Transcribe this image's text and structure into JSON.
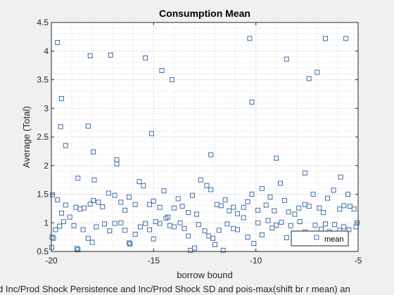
{
  "chart_data": {
    "type": "scatter",
    "title": "Consumption Mean",
    "xlabel": "borrow bound",
    "ylabel": "Average (Total)",
    "caption": "d Inc/Prod Shock Persistence and Inc/Prod Shock SD and pois-max(shift br r mean) an",
    "xlim": [
      -20,
      -5
    ],
    "ylim": [
      0.5,
      4.5
    ],
    "xticks": [
      -20,
      -15,
      -10,
      -5
    ],
    "yticks": [
      0.5,
      1,
      1.5,
      2,
      2.5,
      3,
      3.5,
      4,
      4.5
    ],
    "xtick_labels": [
      "-20",
      "-15",
      "-10",
      "-5"
    ],
    "ytick_labels": [
      "0.5",
      "1",
      "1.5",
      "2",
      "2.5",
      "3",
      "3.5",
      "4",
      "4.5"
    ],
    "grid": "dotted",
    "legend_position": "bottom-right",
    "marker_color": "#3e6fa8",
    "series": [
      {
        "name": "mean",
        "marker": "square",
        "points": [
          [
            -19.7,
            4.15
          ],
          [
            -19.5,
            3.17
          ],
          [
            -19.55,
            2.68
          ],
          [
            -19.3,
            2.35
          ],
          [
            -18.1,
            3.92
          ],
          [
            -17.1,
            3.93
          ],
          [
            -18.2,
            2.69
          ],
          [
            -17.95,
            2.24
          ],
          [
            -16.8,
            2.1
          ],
          [
            -16.8,
            2.03
          ],
          [
            -15.4,
            3.88
          ],
          [
            -15.1,
            2.56
          ],
          [
            -14.6,
            3.66
          ],
          [
            -14.1,
            3.5
          ],
          [
            -12.2,
            2.19
          ],
          [
            -10.3,
            4.22
          ],
          [
            -10.2,
            3.11
          ],
          [
            -8.5,
            3.86
          ],
          [
            -7.4,
            3.52
          ],
          [
            -7.0,
            3.63
          ],
          [
            -6.6,
            4.22
          ],
          [
            -5.6,
            4.22
          ],
          [
            -9.0,
            2.13
          ],
          [
            -7.6,
            1.87
          ],
          [
            -5.85,
            1.8
          ],
          [
            -18.7,
            1.78
          ],
          [
            -17.9,
            1.75
          ],
          [
            -19.95,
            1.49
          ],
          [
            -19.7,
            1.4
          ],
          [
            -19.3,
            1.31
          ],
          [
            -19.5,
            1.17
          ],
          [
            -19.1,
            1.1
          ],
          [
            -18.8,
            1.27
          ],
          [
            -18.6,
            1.24
          ],
          [
            -18.4,
            1.26
          ],
          [
            -18.1,
            1.33
          ],
          [
            -17.95,
            1.39
          ],
          [
            -17.7,
            1.36
          ],
          [
            -17.5,
            1.28
          ],
          [
            -17.2,
            1.52
          ],
          [
            -16.9,
            1.48
          ],
          [
            -16.6,
            1.36
          ],
          [
            -16.4,
            1.22
          ],
          [
            -16.2,
            1.45
          ],
          [
            -15.9,
            1.32
          ],
          [
            -15.7,
            1.72
          ],
          [
            -15.5,
            1.65
          ],
          [
            -15.2,
            1.32
          ],
          [
            -15.0,
            1.38
          ],
          [
            -14.7,
            1.27
          ],
          [
            -14.5,
            1.56
          ],
          [
            -14.3,
            1.1
          ],
          [
            -14.0,
            1.26
          ],
          [
            -13.8,
            1.42
          ],
          [
            -13.6,
            1.29
          ],
          [
            -13.3,
            1.18
          ],
          [
            -13.1,
            1.48
          ],
          [
            -12.9,
            1.15
          ],
          [
            -12.7,
            1.75
          ],
          [
            -12.4,
            1.65
          ],
          [
            -12.2,
            1.58
          ],
          [
            -11.9,
            1.32
          ],
          [
            -11.7,
            1.3
          ],
          [
            -11.5,
            1.4
          ],
          [
            -11.3,
            1.21
          ],
          [
            -11.1,
            1.27
          ],
          [
            -10.9,
            1.16
          ],
          [
            -10.6,
            1.27
          ],
          [
            -10.4,
            1.37
          ],
          [
            -10.2,
            1.5
          ],
          [
            -9.9,
            1.22
          ],
          [
            -9.7,
            1.6
          ],
          [
            -9.5,
            1.31
          ],
          [
            -9.3,
            1.45
          ],
          [
            -9.1,
            1.21
          ],
          [
            -8.8,
            1.69
          ],
          [
            -8.6,
            1.39
          ],
          [
            -8.4,
            1.19
          ],
          [
            -8.1,
            1.15
          ],
          [
            -7.9,
            1.26
          ],
          [
            -7.6,
            1.32
          ],
          [
            -7.4,
            1.29
          ],
          [
            -7.2,
            1.5
          ],
          [
            -6.9,
            1.26
          ],
          [
            -6.7,
            1.18
          ],
          [
            -6.5,
            1.43
          ],
          [
            -6.2,
            1.57
          ],
          [
            -5.9,
            1.24
          ],
          [
            -5.7,
            1.3
          ],
          [
            -5.5,
            1.5
          ],
          [
            -5.2,
            1.24
          ],
          [
            -5.4,
            1.29
          ],
          [
            -19.8,
            0.88
          ],
          [
            -19.6,
            0.94
          ],
          [
            -19.9,
            0.73
          ],
          [
            -19.4,
            1.02
          ],
          [
            -18.9,
            0.95
          ],
          [
            -18.7,
            0.53
          ],
          [
            -18.45,
            0.88
          ],
          [
            -18.2,
            0.73
          ],
          [
            -18.0,
            0.66
          ],
          [
            -17.8,
            0.93
          ],
          [
            -17.4,
            0.98
          ],
          [
            -17.15,
            0.86
          ],
          [
            -16.9,
            0.99
          ],
          [
            -16.6,
            1.0
          ],
          [
            -16.4,
            0.87
          ],
          [
            -16.15,
            0.63
          ],
          [
            -15.9,
            0.8
          ],
          [
            -15.65,
            0.93
          ],
          [
            -15.4,
            0.99
          ],
          [
            -15.2,
            0.88
          ],
          [
            -14.9,
            1.02
          ],
          [
            -14.7,
            0.99
          ],
          [
            -14.4,
            1.08
          ],
          [
            -14.2,
            0.95
          ],
          [
            -14.0,
            0.93
          ],
          [
            -13.7,
            1.0
          ],
          [
            -13.5,
            0.9
          ],
          [
            -13.3,
            0.77
          ],
          [
            -13.0,
            0.56
          ],
          [
            -12.8,
            0.97
          ],
          [
            -12.5,
            0.86
          ],
          [
            -12.3,
            0.77
          ],
          [
            -12.0,
            0.62
          ],
          [
            -11.8,
            0.87
          ],
          [
            -11.6,
            0.52
          ],
          [
            -11.4,
            0.98
          ],
          [
            -11.1,
            0.9
          ],
          [
            -10.9,
            0.88
          ],
          [
            -10.6,
            1.09
          ],
          [
            -10.4,
            0.75
          ],
          [
            -10.1,
            0.64
          ],
          [
            -9.9,
            1.0
          ],
          [
            -9.7,
            0.79
          ],
          [
            -9.4,
            1.04
          ],
          [
            -9.2,
            0.91
          ],
          [
            -9.0,
            0.96
          ],
          [
            -8.75,
            1.01
          ],
          [
            -8.5,
            0.74
          ],
          [
            -8.3,
            0.95
          ],
          [
            -8.0,
            0.82
          ],
          [
            -7.85,
            1.02
          ],
          [
            -7.6,
            0.84
          ],
          [
            -7.3,
            0.77
          ],
          [
            -7.1,
            0.96
          ],
          [
            -6.8,
            0.89
          ],
          [
            -6.6,
            0.98
          ],
          [
            -6.4,
            0.84
          ],
          [
            -6.15,
            0.97
          ],
          [
            -5.9,
            0.87
          ],
          [
            -5.7,
            0.93
          ],
          [
            -5.45,
            0.88
          ],
          [
            -5.1,
            0.93
          ],
          [
            -5.05,
            1.0
          ],
          [
            -19.98,
            0.57
          ],
          [
            -19.97,
            0.75
          ],
          [
            -18.75,
            0.55
          ],
          [
            -16.2,
            0.65
          ],
          [
            -15.0,
            0.72
          ],
          [
            -13.2,
            0.52
          ],
          [
            -12.1,
            0.73
          ]
        ]
      }
    ]
  }
}
